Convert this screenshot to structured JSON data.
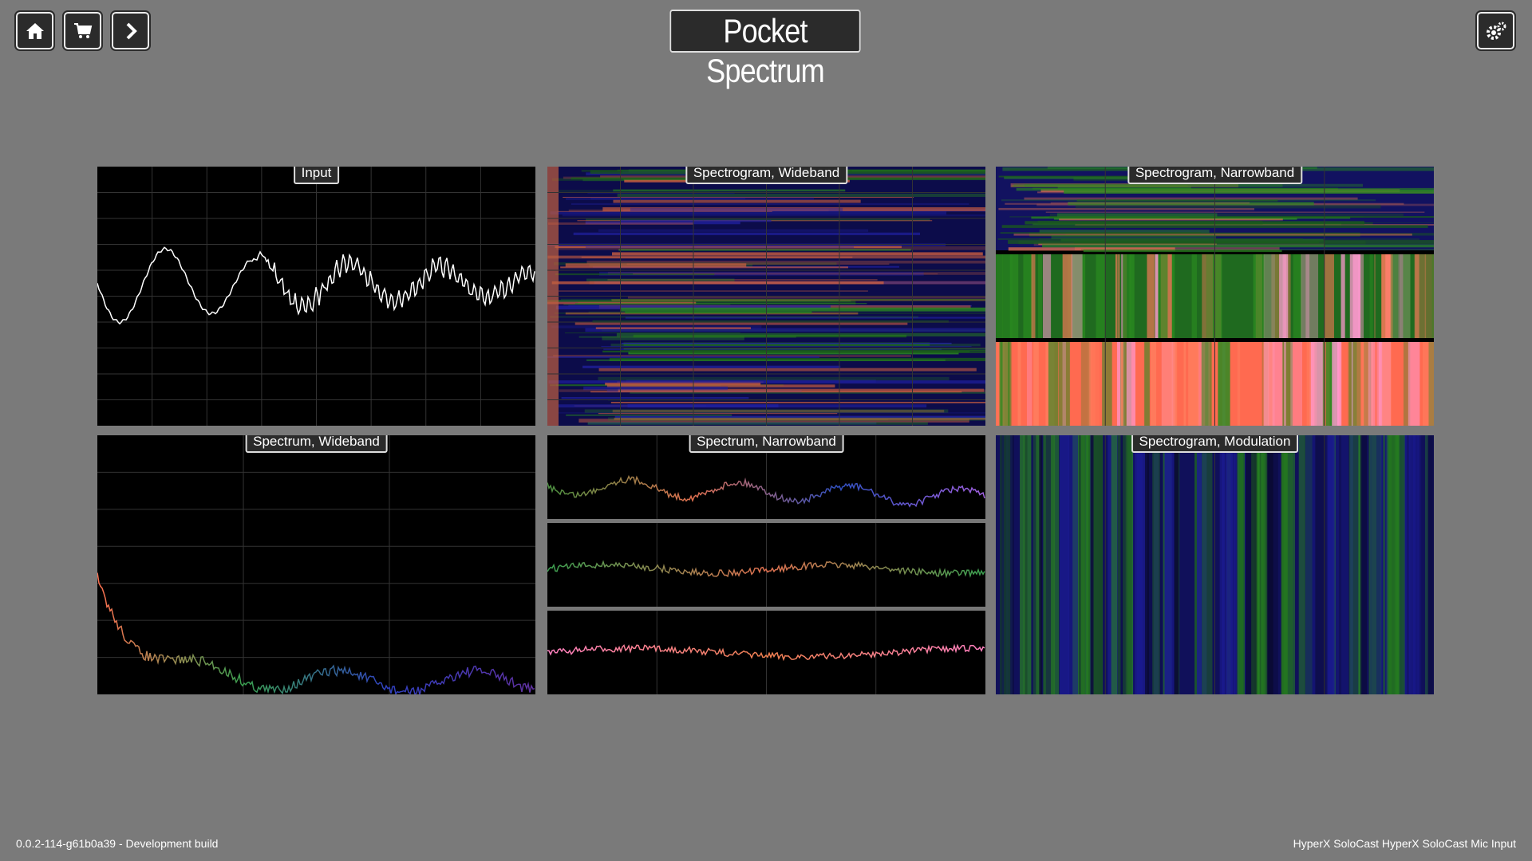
{
  "header": {
    "title": "Pocket Spectrum"
  },
  "panels": [
    {
      "label": "Input"
    },
    {
      "label": "Spectrogram, Wideband"
    },
    {
      "label": "Spectrogram, Narrowband"
    },
    {
      "label": "Spectrum, Wideband"
    },
    {
      "label": "Spectrum, Narrowband"
    },
    {
      "label": "Spectrogram, Modulation"
    }
  ],
  "footer": {
    "version": "0.0.2-114-g61b0a39 - Development build",
    "device": "HyperX SoloCast HyperX SoloCast Mic Input"
  }
}
